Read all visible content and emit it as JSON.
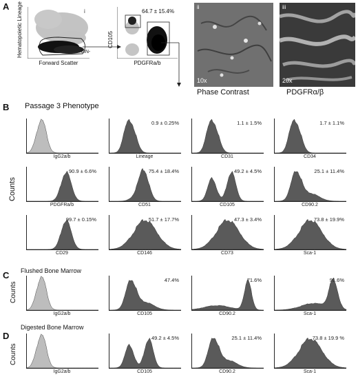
{
  "panels": {
    "A": {
      "letter": "A",
      "scatter1": {
        "roman": "i",
        "ylabel": "Hematopoietic Lineage",
        "xlabel": "Forward Scatter",
        "gate_label": "LIN-"
      },
      "scatter2": {
        "ylabel": "CD105",
        "xlabel": "PDGFRa/b",
        "stat": "64.7 ± 15.4%"
      },
      "micro1": {
        "roman": "ii",
        "magnification": "10x",
        "caption": "Phase Contrast"
      },
      "micro2": {
        "roman": "iii",
        "magnification": "20x",
        "caption": "PDGFRα/β"
      }
    },
    "B": {
      "letter": "B",
      "title": "Passage 3 Phenotype",
      "ylabel": "Counts",
      "rows": [
        [
          {
            "marker": "IgG2a/b",
            "stat": "",
            "shape": "control"
          },
          {
            "marker": "Lineage",
            "stat": "0.9 ± 0.25%",
            "shape": "low"
          },
          {
            "marker": "CD31",
            "stat": "1.1 ± 1.5%",
            "shape": "low"
          },
          {
            "marker": "CD34",
            "stat": "1.7 ± 1.1%",
            "shape": "low"
          }
        ],
        [
          {
            "marker": "PDGFRa/b",
            "stat": "90.9 ± 6.6%",
            "shape": "high"
          },
          {
            "marker": "CD51",
            "stat": "75.4 ± 18.4%",
            "shape": "mid"
          },
          {
            "marker": "CD105",
            "stat": "49.2 ± 4.5%",
            "shape": "bimodal"
          },
          {
            "marker": "CD90.2",
            "stat": "25.1 ± 11.4%",
            "shape": "lowtail"
          }
        ],
        [
          {
            "marker": "CD29",
            "stat": "99.7 ± 0.15%",
            "shape": "high"
          },
          {
            "marker": "CD146",
            "stat": "51.7 ± 17.7%",
            "shape": "broad"
          },
          {
            "marker": "CD73",
            "stat": "47.3 ± 3.4%",
            "shape": "broad"
          },
          {
            "marker": "Sca-1",
            "stat": "73.8 ± 19.9%",
            "shape": "broad"
          }
        ]
      ]
    },
    "C": {
      "letter": "C",
      "title": "Flushed Bone Marrow",
      "ylabel": "Counts",
      "row": [
        {
          "marker": "IgG2a/b",
          "stat": "",
          "shape": "control"
        },
        {
          "marker": "CD105",
          "stat": "47.4%",
          "shape": "lowtail"
        },
        {
          "marker": "CD90.2",
          "stat": "71.6%",
          "shape": "rightpeak"
        },
        {
          "marker": "Sca-1",
          "stat": "91.6%",
          "shape": "rightpeak2"
        }
      ]
    },
    "D": {
      "letter": "D",
      "title": "Digested Bone Marrow",
      "ylabel": "Counts",
      "row": [
        {
          "marker": "IgG2a/b",
          "stat": "",
          "shape": "control"
        },
        {
          "marker": "CD105",
          "stat": "49.2 ± 4.5%",
          "shape": "bimodal"
        },
        {
          "marker": "CD90.2",
          "stat": "25.1 ± 11.4%",
          "shape": "lowtail"
        },
        {
          "marker": "Sca-1",
          "stat": "73.8 ± 19.9 %",
          "shape": "broad"
        }
      ]
    }
  },
  "colors": {
    "histogram_fill": "#5a5a5a",
    "control_fill": "#bdbdbd",
    "micro_bg": "#6b6b6b",
    "micro2_bg": "#3a3a3a"
  }
}
